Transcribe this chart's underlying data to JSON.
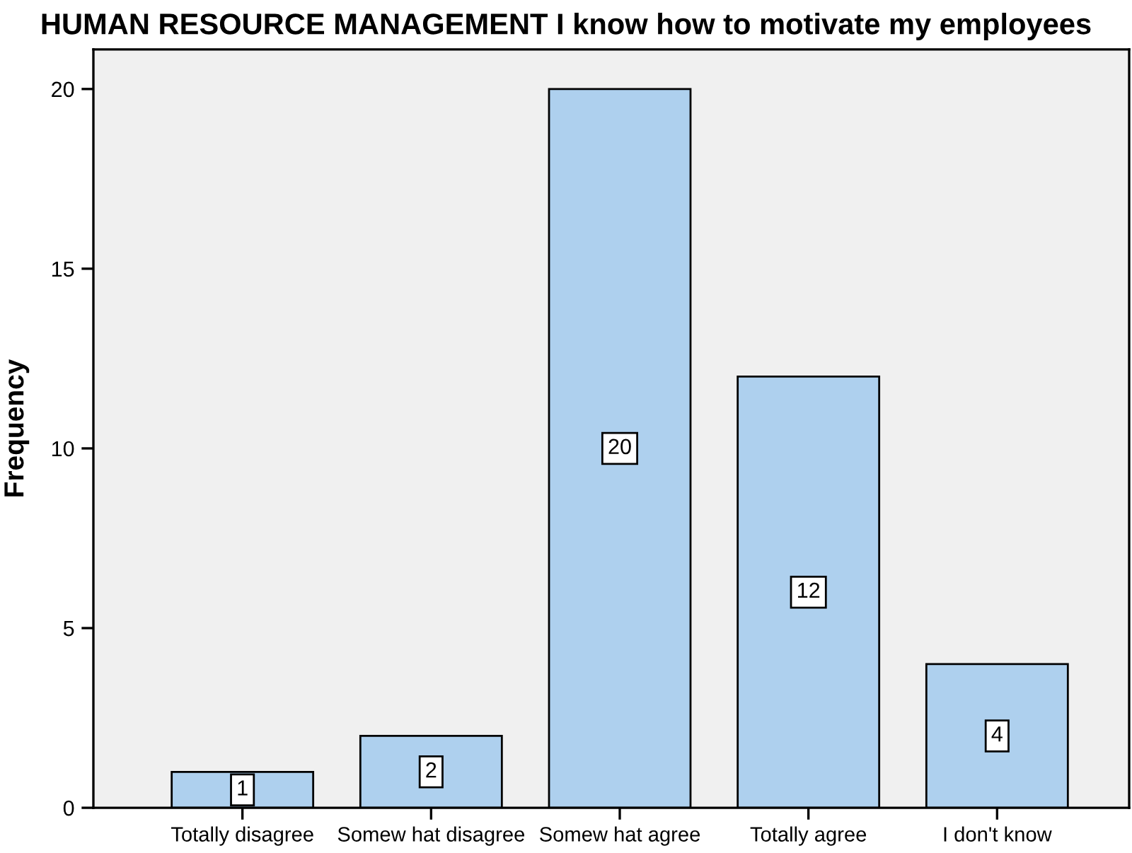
{
  "chart_data": {
    "type": "bar",
    "title": "HUMAN RESOURCE MANAGEMENT I know how to motivate my employees",
    "ylabel": "Frequency",
    "categories": [
      "Totally disagree",
      "Somew hat disagree",
      "Somew hat agree",
      "Totally agree",
      "I don't know"
    ],
    "values": [
      1,
      2,
      20,
      12,
      4
    ],
    "color": "#aed0ee",
    "ylim": [
      0,
      21.1
    ],
    "yticks": [
      0,
      5,
      10,
      15,
      20
    ],
    "grid": false,
    "data_labels": true
  }
}
